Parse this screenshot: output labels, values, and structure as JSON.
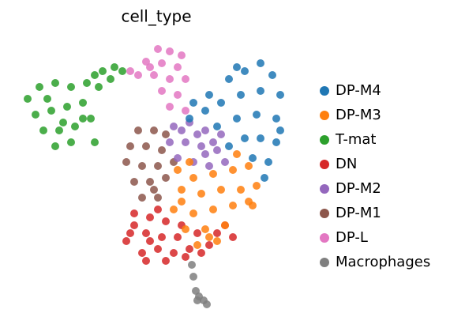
{
  "chart_data": {
    "type": "scatter",
    "title": "cell_type",
    "xlim": [
      0,
      340
    ],
    "ylim": [
      0,
      335
    ],
    "series": [
      {
        "name": "DP-M4",
        "color": "#1f77b4",
        "x": [
          305,
          320,
          285,
          265,
          330,
          305,
          280,
          255,
          235,
          215,
          325,
          300,
          275,
          250,
          325,
          305,
          285,
          265,
          315,
          295,
          240,
          275,
          330,
          220,
          310
        ],
        "y": [
          310,
          295,
          300,
          290,
          270,
          275,
          270,
          260,
          250,
          240,
          240,
          245,
          240,
          230,
          210,
          215,
          215,
          205,
          185,
          190,
          270,
          305,
          225,
          260,
          165
        ]
      },
      {
        "name": "DP-M3",
        "color": "#ff7f0e",
        "x": [
          200,
          220,
          245,
          270,
          290,
          205,
          230,
          255,
          280,
          300,
          195,
          220,
          245,
          270,
          290,
          210,
          235,
          260,
          225,
          250,
          215,
          275,
          205,
          240,
          295
        ],
        "y": [
          175,
          165,
          170,
          175,
          180,
          150,
          145,
          150,
          150,
          155,
          125,
          120,
          125,
          130,
          135,
          100,
          100,
          105,
          80,
          85,
          185,
          195,
          135,
          90,
          130
        ]
      },
      {
        "name": "T-mat",
        "color": "#2ca02c",
        "x": [
          10,
          25,
          45,
          65,
          85,
          20,
          40,
          60,
          80,
          30,
          50,
          70,
          90,
          45,
          65,
          95,
          105,
          120,
          130,
          100,
          80,
          95,
          115,
          35,
          55
        ],
        "y": [
          265,
          280,
          285,
          280,
          285,
          245,
          250,
          255,
          260,
          225,
          225,
          230,
          240,
          205,
          210,
          295,
          300,
          305,
          300,
          280,
          240,
          210,
          290,
          265,
          235
        ]
      },
      {
        "name": "DN",
        "color": "#d62728",
        "x": [
          145,
          165,
          185,
          140,
          160,
          180,
          200,
          225,
          250,
          270,
          155,
          175,
          195,
          215,
          240,
          160,
          185,
          210,
          145,
          175,
          260,
          230,
          135,
          205,
          165
        ],
        "y": [
          120,
          115,
          110,
          95,
          95,
          90,
          90,
          95,
          95,
          90,
          70,
          75,
          70,
          75,
          80,
          60,
          60,
          65,
          105,
          125,
          105,
          70,
          85,
          105,
          85
        ]
      },
      {
        "name": "DP-M2",
        "color": "#9467bd",
        "x": [
          195,
          215,
          235,
          255,
          190,
          210,
          230,
          250,
          200,
          220,
          240,
          260,
          205,
          225,
          245,
          235
        ],
        "y": [
          230,
          235,
          225,
          220,
          210,
          210,
          205,
          200,
          190,
          185,
          180,
          185,
          225,
          220,
          210,
          195
        ]
      },
      {
        "name": "DP-M1",
        "color": "#8c564b",
        "x": [
          150,
          170,
          185,
          140,
          160,
          180,
          135,
          155,
          175,
          195,
          145,
          165,
          185,
          155,
          175,
          170
        ],
        "y": [
          225,
          225,
          220,
          205,
          205,
          200,
          185,
          180,
          180,
          185,
          160,
          160,
          165,
          140,
          140,
          150
        ]
      },
      {
        "name": "DP-L",
        "color": "#e377c2",
        "x": [
          175,
          190,
          205,
          160,
          180,
          200,
          150,
          170,
          190,
          210,
          180,
          200,
          190,
          210,
          165,
          140
        ],
        "y": [
          328,
          325,
          320,
          312,
          310,
          305,
          295,
          295,
          290,
          290,
          275,
          270,
          255,
          250,
          305,
          300
        ]
      },
      {
        "name": "Macrophages",
        "color": "#7f7f7f",
        "x": [
          218,
          220,
          223,
          227,
          233,
          237,
          225
        ],
        "y": [
          55,
          40,
          22,
          15,
          10,
          5,
          10
        ]
      }
    ]
  }
}
